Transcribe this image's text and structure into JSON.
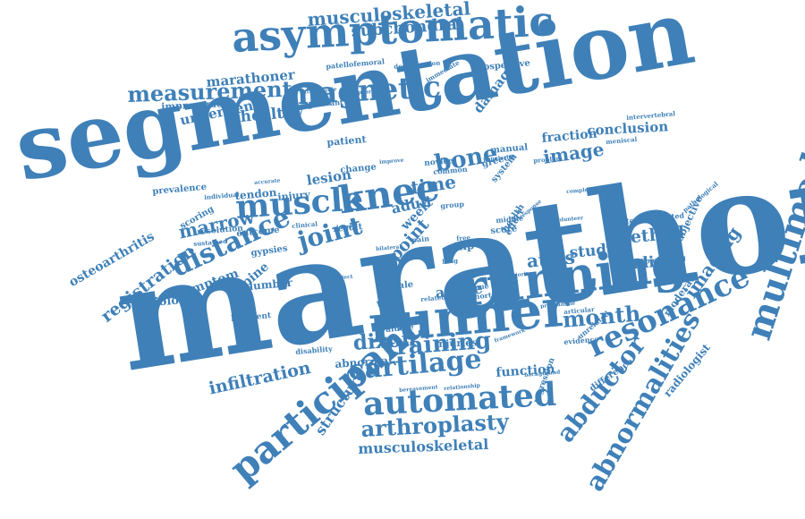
{
  "word_color": "#3f80b8",
  "background": "#ffffff",
  "words": [
    {
      "key": "segmentation",
      "text": "segmentation"
    },
    {
      "key": "marathon",
      "text": "marathon"
    },
    {
      "key": "asymptomatic",
      "text": "asymptomatic"
    },
    {
      "key": "running",
      "text": "running"
    },
    {
      "key": "runner",
      "text": "runner"
    },
    {
      "key": "muscle",
      "text": "muscle"
    },
    {
      "key": "knee",
      "text": "knee"
    },
    {
      "key": "magnetic",
      "text": "magnetic"
    },
    {
      "key": "measurement",
      "text": "measurement"
    },
    {
      "key": "multimodal",
      "text": "multimodal"
    },
    {
      "key": "resonance",
      "text": "resonance"
    },
    {
      "key": "participant",
      "text": "participant"
    },
    {
      "key": "automated",
      "text": "automated"
    },
    {
      "key": "cartilage",
      "text": "cartilage"
    },
    {
      "key": "training",
      "text": "training"
    },
    {
      "key": "abnormalities",
      "text": "abnormalities"
    },
    {
      "key": "abductor",
      "text": "abductor"
    },
    {
      "key": "distance",
      "text": "distance"
    },
    {
      "key": "joint",
      "text": "joint"
    },
    {
      "key": "arthroplasty",
      "text": "arthroplasty"
    },
    {
      "key": "musculoskeletal",
      "text": "musculoskeletal"
    },
    {
      "key": "musculoskeletal_top",
      "text": "musculoskeletal"
    },
    {
      "key": "subchondral",
      "text": "subchondral"
    },
    {
      "key": "method",
      "text": "method"
    },
    {
      "key": "image",
      "text": "image"
    },
    {
      "key": "imaging",
      "text": "imaging"
    },
    {
      "key": "atlas",
      "text": "atlas"
    },
    {
      "key": "finding",
      "text": "finding"
    },
    {
      "key": "study",
      "text": "study"
    },
    {
      "key": "month",
      "text": "month"
    },
    {
      "key": "dixon",
      "text": "dixon"
    },
    {
      "key": "infiltration",
      "text": "infiltration"
    },
    {
      "key": "registration",
      "text": "registration"
    },
    {
      "key": "osteoarthritis",
      "text": "osteoarthritis"
    },
    {
      "key": "marrow",
      "text": "marrow"
    },
    {
      "key": "bone",
      "text": "bone"
    },
    {
      "key": "time",
      "text": "time"
    },
    {
      "key": "adult",
      "text": "adult"
    },
    {
      "key": "lesion",
      "text": "lesion"
    },
    {
      "key": "healthy",
      "text": "healthy"
    },
    {
      "key": "underwent",
      "text": "underwent"
    },
    {
      "key": "marathoner",
      "text": "marathoner"
    },
    {
      "key": "conclusion",
      "text": "conclusion"
    },
    {
      "key": "fraction",
      "text": "fraction"
    },
    {
      "key": "structure",
      "text": "structure"
    },
    {
      "key": "radiologist",
      "text": "radiologist"
    },
    {
      "key": "damage",
      "text": "damage"
    },
    {
      "key": "point",
      "text": "point"
    },
    {
      "key": "week",
      "text": "week"
    },
    {
      "key": "active",
      "text": "active"
    },
    {
      "key": "spine",
      "text": "spine"
    },
    {
      "key": "symptom",
      "text": "symptom"
    },
    {
      "key": "radiology",
      "text": "radiology"
    },
    {
      "key": "lumbar",
      "text": "lumbar"
    },
    {
      "key": "abnormal",
      "text": "abnormal"
    },
    {
      "key": "function",
      "text": "function"
    },
    {
      "key": "injuries",
      "text": "injuries"
    },
    {
      "key": "tendon",
      "text": "tendon"
    },
    {
      "key": "injury",
      "text": "injury"
    },
    {
      "key": "patient",
      "text": "patient"
    },
    {
      "key": "improvement",
      "text": "improvement"
    },
    {
      "key": "scoring",
      "text": "scoring"
    },
    {
      "key": "moderate",
      "text": "moderate"
    },
    {
      "key": "objective",
      "text": "objective"
    },
    {
      "key": "difference",
      "text": "difference"
    },
    {
      "key": "prevalence",
      "text": "prevalence"
    },
    {
      "key": "outcome",
      "text": "outcome"
    },
    {
      "key": "resolution",
      "text": "resolution"
    },
    {
      "key": "gypsies",
      "text": "gypsies"
    },
    {
      "key": "female",
      "text": "female"
    },
    {
      "key": "ligament",
      "text": "ligament"
    },
    {
      "key": "pelvis",
      "text": "pelvis"
    },
    {
      "key": "evaluate",
      "text": "evaluate"
    },
    {
      "key": "disability",
      "text": "disability"
    },
    {
      "key": "result",
      "text": "result"
    },
    {
      "key": "change",
      "text": "change"
    },
    {
      "key": "manual",
      "text": "manual"
    },
    {
      "key": "novice",
      "text": "novice"
    },
    {
      "key": "greece",
      "text": "greece"
    },
    {
      "key": "common",
      "text": "common"
    },
    {
      "key": "prospective",
      "text": "prospective"
    },
    {
      "key": "patellofemoral",
      "text": "patellofemoral"
    },
    {
      "key": "degeneration",
      "text": "degeneration"
    },
    {
      "key": "immediate",
      "text": "immediate"
    },
    {
      "key": "significant",
      "text": "significant"
    },
    {
      "key": "attributable",
      "text": "attributable"
    },
    {
      "key": "appearance",
      "text": "appearance"
    },
    {
      "key": "intervertebral",
      "text": "intervertebral"
    },
    {
      "key": "meniscal",
      "text": "meniscal"
    },
    {
      "key": "problem",
      "text": "problem"
    },
    {
      "key": "popularity",
      "text": "popularity"
    },
    {
      "key": "complex",
      "text": "complex"
    },
    {
      "key": "material",
      "text": "material"
    },
    {
      "key": "weighted",
      "text": "weighted"
    },
    {
      "key": "pathological",
      "text": "pathological"
    },
    {
      "key": "completing",
      "text": "completing"
    },
    {
      "key": "program",
      "text": "program"
    },
    {
      "key": "articular",
      "text": "articular"
    },
    {
      "key": "evidence",
      "text": "evidence"
    },
    {
      "key": "unrelated",
      "text": "unrelated"
    },
    {
      "key": "framework",
      "text": "framework"
    },
    {
      "key": "regression",
      "text": "regression"
    },
    {
      "key": "background",
      "text": "background"
    },
    {
      "key": "relationship",
      "text": "relationship"
    },
    {
      "key": "bereavement",
      "text": "bereavement"
    },
    {
      "key": "volume",
      "text": "volume"
    },
    {
      "key": "cohort",
      "text": "cohort"
    },
    {
      "key": "majority",
      "text": "majority"
    },
    {
      "key": "score",
      "text": "score"
    },
    {
      "key": "hip",
      "text": "hip"
    },
    {
      "key": "middle",
      "text": "middle"
    },
    {
      "key": "system",
      "text": "system"
    },
    {
      "key": "health",
      "text": "health"
    },
    {
      "key": "individual",
      "text": "individual"
    },
    {
      "key": "sustained",
      "text": "sustained"
    },
    {
      "key": "accurate",
      "text": "accurate"
    },
    {
      "key": "clinical",
      "text": "clinical"
    },
    {
      "key": "lower",
      "text": "lower"
    },
    {
      "key": "accuracy",
      "text": "accuracy"
    },
    {
      "key": "pain",
      "text": "pain"
    },
    {
      "key": "lung",
      "text": "lung"
    },
    {
      "key": "free",
      "text": "free"
    },
    {
      "key": "group",
      "text": "group"
    },
    {
      "key": "effect",
      "text": "effect"
    },
    {
      "key": "related",
      "text": "related"
    },
    {
      "key": "happen",
      "text": "happen"
    },
    {
      "key": "improve",
      "text": "improve"
    },
    {
      "key": "subject",
      "text": "subject"
    },
    {
      "key": "bilateral",
      "text": "bilateral"
    },
    {
      "key": "volunteer",
      "text": "volunteer"
    },
    {
      "key": "increase",
      "text": "increase"
    },
    {
      "key": "programme",
      "text": "programme"
    },
    {
      "key": "response",
      "text": "response"
    }
  ]
}
